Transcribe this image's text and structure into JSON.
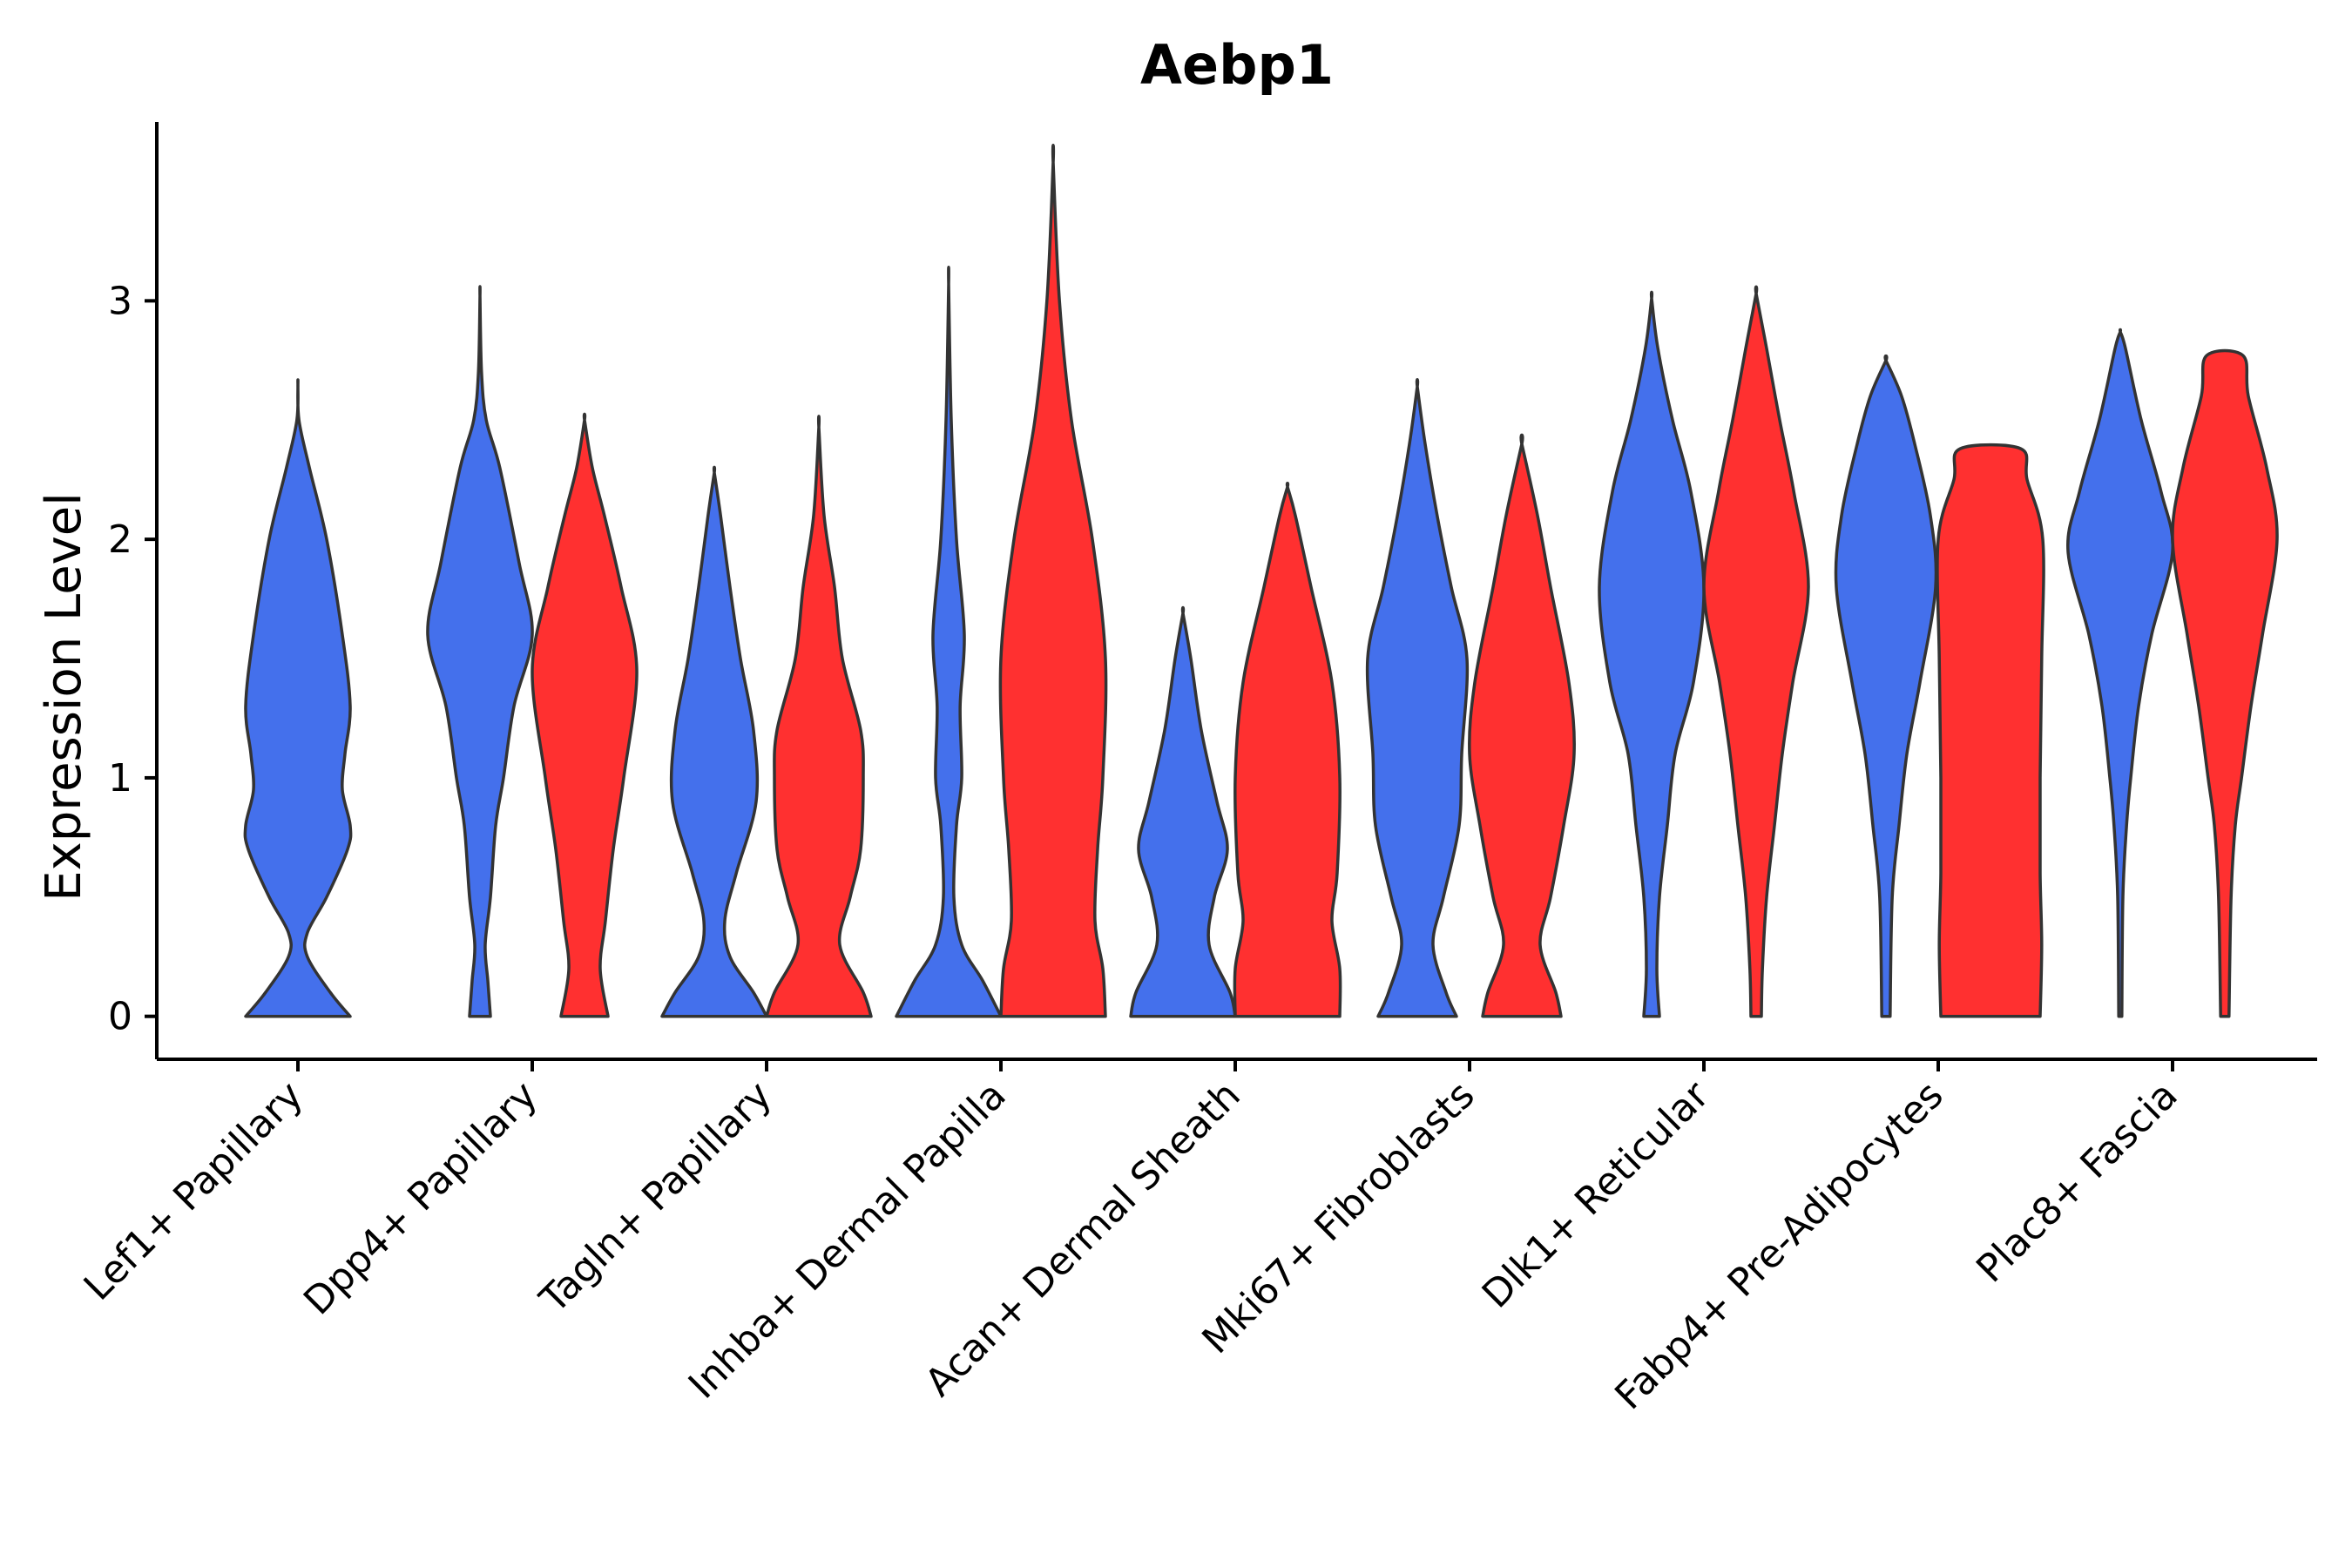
{
  "chart_data": {
    "type": "violin",
    "title": "Aebp1",
    "xlabel": "",
    "ylabel": "Expression Level",
    "ylim": [
      -0.18,
      3.75
    ],
    "yticks": [
      0,
      1,
      2,
      3
    ],
    "categories": [
      "Lef1+ Papillary",
      "Dpp4+ Papillary",
      "Tagln+ Papillary",
      "Inhba+ Dermal Papilla",
      "Acan+ Dermal Sheath",
      "Mki67+ Fibroblasts",
      "Dlk1+ Reticular",
      "Fabp4+ Pre-Adipocytes",
      "Plac8+ Fascia"
    ],
    "series": [
      {
        "name": "group-blue",
        "color": "#4470EC",
        "violins": [
          {
            "category": "Lef1+ Papillary",
            "max": 2.65,
            "widths": [
              [
                0,
                1.0
              ],
              [
                0.1,
                0.62
              ],
              [
                0.25,
                0.18
              ],
              [
                0.35,
                0.18
              ],
              [
                0.5,
                0.55
              ],
              [
                0.7,
                0.95
              ],
              [
                0.8,
                1.0
              ],
              [
                0.95,
                0.85
              ],
              [
                1.1,
                0.9
              ],
              [
                1.3,
                1.0
              ],
              [
                1.6,
                0.85
              ],
              [
                2.0,
                0.55
              ],
              [
                2.3,
                0.22
              ],
              [
                2.5,
                0.02
              ],
              [
                2.65,
                0
              ]
            ]
          },
          {
            "category": "Dpp4+ Papillary",
            "max": 3.02,
            "widths": [
              [
                0,
                0.2
              ],
              [
                0.15,
                0.15
              ],
              [
                0.3,
                0.1
              ],
              [
                0.5,
                0.2
              ],
              [
                0.8,
                0.3
              ],
              [
                1.0,
                0.45
              ],
              [
                1.3,
                0.65
              ],
              [
                1.6,
                1.0
              ],
              [
                1.9,
                0.75
              ],
              [
                2.3,
                0.38
              ],
              [
                2.5,
                0.12
              ],
              [
                2.7,
                0.03
              ],
              [
                3.02,
                0
              ]
            ]
          },
          {
            "category": "Tagln+ Papillary",
            "max": 2.28,
            "widths": [
              [
                0,
                1.0
              ],
              [
                0.1,
                0.75
              ],
              [
                0.25,
                0.3
              ],
              [
                0.4,
                0.2
              ],
              [
                0.6,
                0.42
              ],
              [
                0.9,
                0.8
              ],
              [
                1.2,
                0.75
              ],
              [
                1.5,
                0.5
              ],
              [
                1.8,
                0.3
              ],
              [
                2.1,
                0.12
              ],
              [
                2.28,
                0
              ]
            ]
          },
          {
            "category": "Inhba+ Dermal Papilla",
            "max": 3.07,
            "widths": [
              [
                0,
                1.0
              ],
              [
                0.15,
                0.65
              ],
              [
                0.3,
                0.25
              ],
              [
                0.5,
                0.1
              ],
              [
                0.8,
                0.15
              ],
              [
                1.0,
                0.25
              ],
              [
                1.3,
                0.22
              ],
              [
                1.6,
                0.3
              ],
              [
                2.0,
                0.15
              ],
              [
                2.5,
                0.05
              ],
              [
                3.07,
                0
              ]
            ]
          },
          {
            "category": "Acan+ Dermal Sheath",
            "max": 1.69,
            "widths": [
              [
                0,
                1.0
              ],
              [
                0.1,
                0.9
              ],
              [
                0.3,
                0.5
              ],
              [
                0.5,
                0.6
              ],
              [
                0.7,
                0.85
              ],
              [
                0.9,
                0.65
              ],
              [
                1.2,
                0.35
              ],
              [
                1.5,
                0.15
              ],
              [
                1.69,
                0
              ]
            ]
          },
          {
            "category": "Mki67+ Fibroblasts",
            "max": 2.64,
            "widths": [
              [
                0,
                0.75
              ],
              [
                0.1,
                0.55
              ],
              [
                0.3,
                0.3
              ],
              [
                0.5,
                0.5
              ],
              [
                0.8,
                0.8
              ],
              [
                1.1,
                0.85
              ],
              [
                1.5,
                0.95
              ],
              [
                1.8,
                0.65
              ],
              [
                2.1,
                0.38
              ],
              [
                2.4,
                0.15
              ],
              [
                2.64,
                0
              ]
            ]
          },
          {
            "category": "Dlk1+ Reticular",
            "max": 3.01,
            "widths": [
              [
                0,
                0.15
              ],
              [
                0.2,
                0.1
              ],
              [
                0.5,
                0.15
              ],
              [
                0.8,
                0.3
              ],
              [
                1.1,
                0.45
              ],
              [
                1.4,
                0.8
              ],
              [
                1.8,
                1.0
              ],
              [
                2.2,
                0.75
              ],
              [
                2.5,
                0.4
              ],
              [
                2.8,
                0.12
              ],
              [
                3.01,
                0
              ]
            ]
          },
          {
            "category": "Fabp4+ Pre-Adipocytes",
            "max": 2.75,
            "widths": [
              [
                0,
                0.08
              ],
              [
                0.5,
                0.12
              ],
              [
                0.8,
                0.25
              ],
              [
                1.1,
                0.4
              ],
              [
                1.4,
                0.65
              ],
              [
                1.8,
                0.95
              ],
              [
                2.1,
                0.85
              ],
              [
                2.4,
                0.55
              ],
              [
                2.6,
                0.3
              ],
              [
                2.75,
                0
              ]
            ]
          },
          {
            "category": "Plac8+ Fascia",
            "max": 2.87,
            "widths": [
              [
                0,
                0.03
              ],
              [
                0.5,
                0.05
              ],
              [
                0.8,
                0.12
              ],
              [
                1.0,
                0.2
              ],
              [
                1.3,
                0.35
              ],
              [
                1.6,
                0.6
              ],
              [
                1.95,
                1.0
              ],
              [
                2.2,
                0.78
              ],
              [
                2.5,
                0.4
              ],
              [
                2.8,
                0.1
              ],
              [
                2.87,
                0
              ]
            ]
          }
        ]
      },
      {
        "name": "group-red",
        "color": "#FF3030",
        "violins": [
          {
            "category": "Dpp4+ Papillary",
            "max": 2.5,
            "widths": [
              [
                0,
                0.45
              ],
              [
                0.2,
                0.3
              ],
              [
                0.4,
                0.4
              ],
              [
                0.7,
                0.55
              ],
              [
                1.0,
                0.75
              ],
              [
                1.45,
                1.0
              ],
              [
                1.8,
                0.7
              ],
              [
                2.1,
                0.38
              ],
              [
                2.3,
                0.15
              ],
              [
                2.5,
                0
              ]
            ]
          },
          {
            "category": "Tagln+ Papillary",
            "max": 2.47,
            "widths": [
              [
                0,
                1.0
              ],
              [
                0.1,
                0.85
              ],
              [
                0.3,
                0.4
              ],
              [
                0.5,
                0.6
              ],
              [
                0.7,
                0.8
              ],
              [
                1.0,
                0.85
              ],
              [
                1.2,
                0.8
              ],
              [
                1.5,
                0.45
              ],
              [
                1.8,
                0.3
              ],
              [
                2.1,
                0.1
              ],
              [
                2.47,
                0
              ]
            ]
          },
          {
            "category": "Inhba+ Dermal Papilla",
            "max": 3.58,
            "widths": [
              [
                0,
                1.0
              ],
              [
                0.2,
                0.95
              ],
              [
                0.4,
                0.8
              ],
              [
                0.7,
                0.85
              ],
              [
                1.0,
                0.95
              ],
              [
                1.5,
                1.0
              ],
              [
                2.0,
                0.75
              ],
              [
                2.5,
                0.35
              ],
              [
                3.0,
                0.12
              ],
              [
                3.58,
                0
              ]
            ]
          },
          {
            "category": "Acan+ Dermal Sheath",
            "max": 2.22,
            "widths": [
              [
                0,
                1.0
              ],
              [
                0.2,
                1.0
              ],
              [
                0.4,
                0.85
              ],
              [
                0.6,
                0.95
              ],
              [
                1.0,
                1.0
              ],
              [
                1.4,
                0.85
              ],
              [
                1.8,
                0.45
              ],
              [
                2.1,
                0.15
              ],
              [
                2.22,
                0
              ]
            ]
          },
          {
            "category": "Mki67+ Fibroblasts",
            "max": 2.4,
            "widths": [
              [
                0,
                0.75
              ],
              [
                0.1,
                0.65
              ],
              [
                0.3,
                0.35
              ],
              [
                0.5,
                0.55
              ],
              [
                0.8,
                0.8
              ],
              [
                1.1,
                1.0
              ],
              [
                1.4,
                0.9
              ],
              [
                1.8,
                0.55
              ],
              [
                2.1,
                0.3
              ],
              [
                2.4,
                0
              ]
            ]
          },
          {
            "category": "Dlk1+ Reticular",
            "max": 3.03,
            "widths": [
              [
                0,
                0.1
              ],
              [
                0.2,
                0.12
              ],
              [
                0.5,
                0.2
              ],
              [
                0.8,
                0.35
              ],
              [
                1.1,
                0.5
              ],
              [
                1.4,
                0.7
              ],
              [
                1.8,
                1.0
              ],
              [
                2.2,
                0.72
              ],
              [
                2.5,
                0.45
              ],
              [
                2.8,
                0.2
              ],
              [
                3.03,
                0
              ]
            ]
          },
          {
            "category": "Fabp4+ Pre-Adipocytes",
            "max": 2.38,
            "widths": [
              [
                0,
                0.95
              ],
              [
                0.3,
                0.98
              ],
              [
                0.6,
                0.95
              ],
              [
                1.0,
                0.95
              ],
              [
                1.5,
                0.98
              ],
              [
                2.0,
                1.0
              ],
              [
                2.25,
                0.7
              ],
              [
                2.38,
                0.58
              ]
            ]
          },
          {
            "category": "Plac8+ Fascia",
            "max": 2.77,
            "widths": [
              [
                0,
                0.08
              ],
              [
                0.5,
                0.12
              ],
              [
                0.8,
                0.2
              ],
              [
                1.0,
                0.32
              ],
              [
                1.3,
                0.5
              ],
              [
                1.6,
                0.72
              ],
              [
                2.0,
                1.0
              ],
              [
                2.3,
                0.8
              ],
              [
                2.6,
                0.45
              ],
              [
                2.77,
                0.35
              ]
            ]
          }
        ]
      }
    ]
  }
}
